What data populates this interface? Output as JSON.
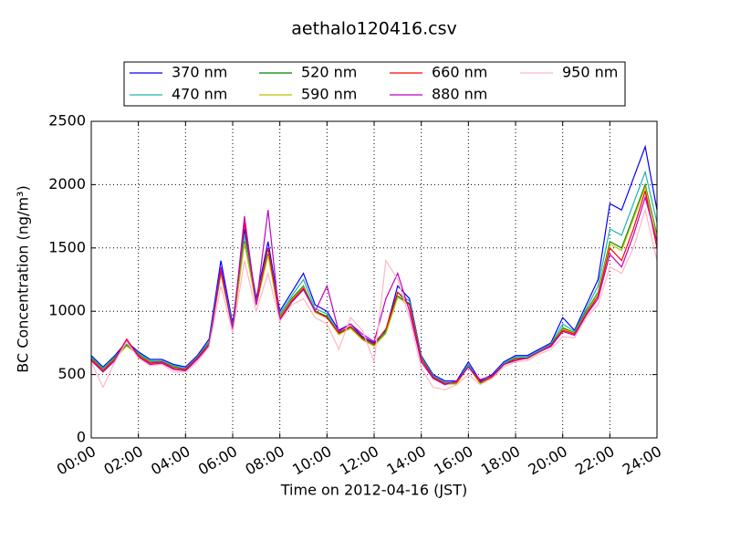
{
  "chart_data": {
    "type": "line",
    "title": "aethalo120416.csv",
    "xlabel": "Time on 2012-04-16 (JST)",
    "ylabel": "BC Concentration (ng/m³)",
    "x": [
      0,
      0.5,
      1,
      1.5,
      2,
      2.5,
      3,
      3.5,
      4,
      4.5,
      5,
      5.5,
      6,
      6.5,
      7,
      7.5,
      8,
      8.5,
      9,
      9.5,
      10,
      10.5,
      11,
      11.5,
      12,
      12.5,
      13,
      13.5,
      14,
      14.5,
      15,
      15.5,
      16,
      16.5,
      17,
      17.5,
      18,
      18.5,
      19,
      19.5,
      20,
      20.5,
      21,
      21.5,
      22,
      22.5,
      23,
      23.5,
      24
    ],
    "series": [
      {
        "name": "370 nm",
        "color": "#0000ff",
        "values": [
          650,
          560,
          650,
          760,
          680,
          620,
          620,
          580,
          560,
          650,
          780,
          1400,
          900,
          1650,
          1100,
          1550,
          1000,
          1150,
          1300,
          1050,
          1000,
          850,
          900,
          800,
          750,
          850,
          1200,
          1100,
          650,
          500,
          450,
          450,
          600,
          450,
          500,
          600,
          650,
          650,
          700,
          750,
          950,
          850,
          1050,
          1250,
          1850,
          1800,
          2050,
          2300,
          1800
        ]
      },
      {
        "name": "470 nm",
        "color": "#20b2aa",
        "values": [
          640,
          550,
          640,
          740,
          670,
          610,
          610,
          570,
          550,
          640,
          760,
          1350,
          880,
          1600,
          1080,
          1500,
          980,
          1120,
          1250,
          1020,
          980,
          830,
          880,
          790,
          740,
          840,
          1150,
          1080,
          640,
          490,
          440,
          440,
          580,
          440,
          490,
          590,
          640,
          640,
          690,
          740,
          900,
          840,
          1020,
          1200,
          1650,
          1600,
          1850,
          2100,
          1700
        ]
      },
      {
        "name": "520 nm",
        "color": "#008000",
        "values": [
          630,
          540,
          630,
          730,
          660,
          600,
          600,
          560,
          540,
          630,
          750,
          1300,
          870,
          1550,
          1060,
          1450,
          960,
          1100,
          1200,
          1000,
          960,
          820,
          870,
          780,
          730,
          830,
          1120,
          1060,
          630,
          480,
          430,
          430,
          570,
          430,
          480,
          580,
          630,
          630,
          680,
          730,
          870,
          830,
          1000,
          1150,
          1550,
          1500,
          1750,
          2000,
          1600
        ]
      },
      {
        "name": "590 nm",
        "color": "#bfbf00",
        "values": [
          625,
          535,
          625,
          725,
          655,
          595,
          595,
          555,
          535,
          625,
          745,
          1290,
          860,
          1540,
          1050,
          1440,
          950,
          1090,
          1190,
          990,
          950,
          815,
          865,
          775,
          725,
          825,
          1110,
          1050,
          625,
          475,
          425,
          425,
          565,
          425,
          475,
          575,
          625,
          625,
          675,
          725,
          860,
          825,
          990,
          1140,
          1530,
          1480,
          1730,
          1980,
          1580
        ]
      },
      {
        "name": "660 nm",
        "color": "#ff0000",
        "values": [
          620,
          530,
          620,
          780,
          650,
          590,
          600,
          550,
          540,
          630,
          740,
          1320,
          860,
          1700,
          1050,
          1500,
          940,
          1080,
          1180,
          1000,
          950,
          830,
          880,
          790,
          740,
          860,
          1150,
          1050,
          620,
          480,
          430,
          440,
          560,
          440,
          480,
          580,
          620,
          630,
          680,
          730,
          850,
          820,
          980,
          1120,
          1500,
          1400,
          1650,
          1950,
          1500
        ]
      },
      {
        "name": "880 nm",
        "color": "#c000c0",
        "values": [
          610,
          520,
          610,
          770,
          640,
          580,
          590,
          540,
          530,
          620,
          730,
          1350,
          850,
          1750,
          1050,
          1800,
          930,
          1070,
          1170,
          1000,
          1200,
          840,
          900,
          820,
          760,
          1100,
          1300,
          1000,
          600,
          470,
          420,
          450,
          560,
          460,
          490,
          580,
          610,
          630,
          680,
          720,
          840,
          810,
          970,
          1100,
          1450,
          1350,
          1600,
          1900,
          1550
        ]
      },
      {
        "name": "950 nm",
        "color": "#ffb6c1",
        "values": [
          600,
          400,
          600,
          760,
          630,
          570,
          580,
          520,
          520,
          600,
          720,
          1200,
          830,
          1400,
          1000,
          1300,
          920,
          1050,
          1100,
          950,
          900,
          700,
          950,
          850,
          600,
          1400,
          1250,
          950,
          550,
          400,
          380,
          420,
          500,
          420,
          470,
          560,
          600,
          610,
          660,
          700,
          800,
          790,
          950,
          1050,
          1350,
          1300,
          1500,
          1800,
          1400
        ]
      }
    ],
    "xlim": [
      0,
      24
    ],
    "xticks": [
      {
        "value": 0,
        "label": "00:00"
      },
      {
        "value": 2,
        "label": "02:00"
      },
      {
        "value": 4,
        "label": "04:00"
      },
      {
        "value": 6,
        "label": "06:00"
      },
      {
        "value": 8,
        "label": "08:00"
      },
      {
        "value": 10,
        "label": "10:00"
      },
      {
        "value": 12,
        "label": "12:00"
      },
      {
        "value": 14,
        "label": "14:00"
      },
      {
        "value": 16,
        "label": "16:00"
      },
      {
        "value": 18,
        "label": "18:00"
      },
      {
        "value": 20,
        "label": "20:00"
      },
      {
        "value": 22,
        "label": "22:00"
      },
      {
        "value": 24,
        "label": "24:00"
      }
    ],
    "ylim": [
      0,
      2500
    ],
    "yticks": [
      0,
      500,
      1000,
      1500,
      2000,
      2500
    ],
    "grid": true,
    "legend": "top"
  }
}
